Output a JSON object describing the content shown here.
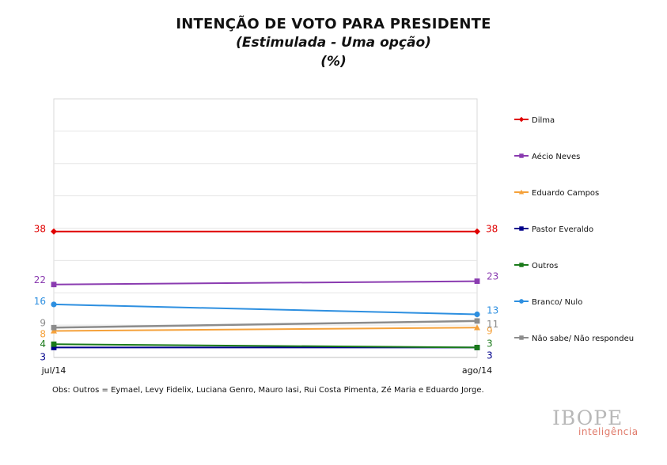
{
  "title": "INTENÇÃO DE VOTO PARA PRESIDENTE",
  "subtitle": "(Estimulada - Uma opção)",
  "unit": "(%)",
  "note": "Obs: Outros = Eymael, Levy Fidelix, Luciana Genro, Mauro Iasi, Rui Costa Pimenta, Zé Maria e Eduardo Jorge.",
  "brand": {
    "name": "IBOPE",
    "sub": "inteligência"
  },
  "chart_data": {
    "type": "line",
    "title": "INTENÇÃO DE VOTO PARA PRESIDENTE",
    "categories": [
      "jul/14",
      "ago/14"
    ],
    "ylim": [
      0,
      78
    ],
    "grid": true,
    "legend_position": "right",
    "series": [
      {
        "name": "Dilma",
        "values": [
          38,
          38
        ],
        "color": "#e00000",
        "marker": "diamond",
        "labels": [
          "38",
          "38"
        ]
      },
      {
        "name": "Aécio Neves",
        "values": [
          22,
          23
        ],
        "color": "#8a3bb0",
        "marker": "square",
        "labels": [
          "22",
          "23"
        ]
      },
      {
        "name": "Eduardo Campos",
        "values": [
          8,
          9
        ],
        "color": "#f5a13a",
        "marker": "triangle",
        "labels": [
          "8",
          "9"
        ]
      },
      {
        "name": "Pastor Everaldo",
        "values": [
          3,
          3
        ],
        "color": "#00008b",
        "marker": "square",
        "labels": [
          "3",
          "3"
        ]
      },
      {
        "name": "Outros",
        "values": [
          4,
          3
        ],
        "color": "#1a7a1a",
        "marker": "square",
        "labels": [
          "4",
          "3"
        ]
      },
      {
        "name": "Branco/ Nulo",
        "values": [
          16,
          13
        ],
        "color": "#2d8fe0",
        "marker": "circle",
        "labels": [
          "16",
          "13"
        ]
      },
      {
        "name": "Não sabe/ Não respondeu",
        "values": [
          9,
          11
        ],
        "color": "#8c8c8c",
        "marker": "square",
        "labels": [
          "9",
          "11"
        ]
      }
    ]
  }
}
